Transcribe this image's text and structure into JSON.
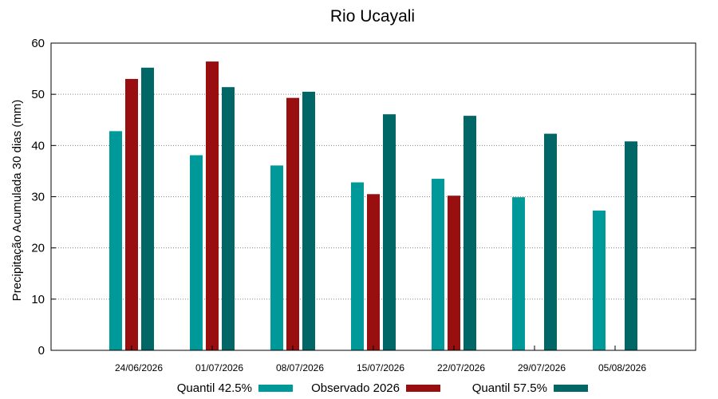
{
  "chart_data": {
    "type": "bar",
    "title": "Rio Ucayali",
    "xlabel": "",
    "ylabel": "Precipitação Acumulada 30 dias (mm)",
    "ylim": [
      0,
      60
    ],
    "yticks": [
      0,
      10,
      20,
      30,
      40,
      50,
      60
    ],
    "grid": "horizontal dotted",
    "legend_position": "bottom",
    "categories": [
      "24/06/2026",
      "01/07/2026",
      "08/07/2026",
      "15/07/2026",
      "22/07/2026",
      "29/07/2026",
      "05/08/2026"
    ],
    "series": [
      {
        "name": "Quantil 42.5%",
        "color": "#009999",
        "values": [
          42.8,
          38.1,
          36.1,
          32.8,
          33.5,
          29.9,
          27.3
        ]
      },
      {
        "name": "Observado 2026",
        "color": "#990f0f",
        "values": [
          53.0,
          56.4,
          49.3,
          30.5,
          30.2,
          null,
          null
        ]
      },
      {
        "name": "Quantil 57.5%",
        "color": "#006666",
        "values": [
          55.2,
          51.4,
          50.5,
          46.1,
          45.8,
          42.3,
          40.8
        ]
      }
    ]
  }
}
